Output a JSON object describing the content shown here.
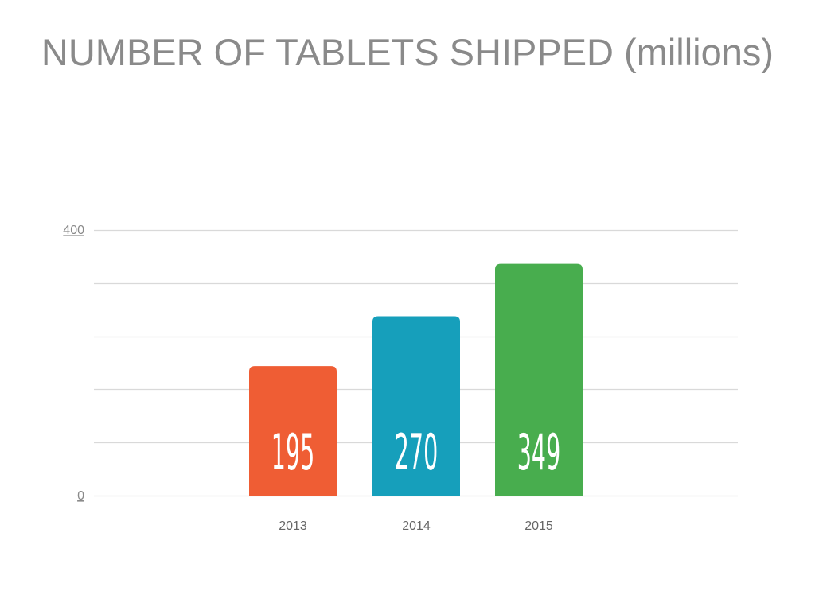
{
  "chart_data": {
    "type": "bar",
    "title": "NUMBER OF TABLETS SHIPPED (millions)",
    "categories": [
      "2013",
      "2014",
      "2015"
    ],
    "values": [
      195,
      270,
      349
    ],
    "data_labels": [
      "195",
      "270",
      "349"
    ],
    "colors": [
      "#ef5d34",
      "#169fbb",
      "#48ad4e"
    ],
    "ylim": [
      0,
      400
    ],
    "ytick_labels": [
      "0",
      "400"
    ],
    "gridline_values": [
      0,
      80,
      160,
      240,
      320,
      400
    ],
    "grid": true,
    "legend": "none"
  }
}
